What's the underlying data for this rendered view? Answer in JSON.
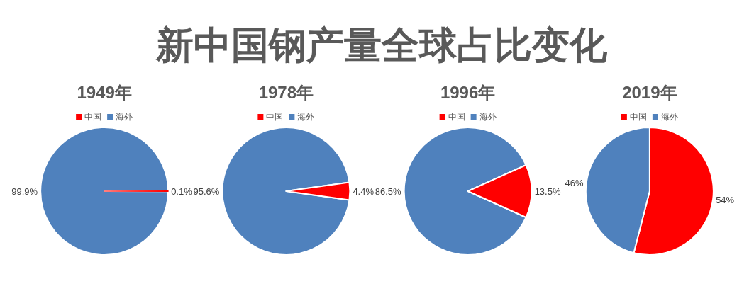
{
  "chart_data": [
    {
      "type": "other",
      "title": "新中国钢产量全球占比变化"
    },
    {
      "type": "pie",
      "title": "1949年",
      "categories": [
        "中国",
        "海外"
      ],
      "values": [
        0.1,
        99.9
      ],
      "colors": [
        "#ff0000",
        "#4f81bd"
      ],
      "value_labels": [
        "0.1%",
        "99.9%"
      ],
      "legend": "top"
    },
    {
      "type": "pie",
      "title": "1978年",
      "categories": [
        "中国",
        "海外"
      ],
      "values": [
        4.4,
        95.6
      ],
      "colors": [
        "#ff0000",
        "#4f81bd"
      ],
      "value_labels": [
        "4.4%",
        "95.6%"
      ],
      "legend": "top"
    },
    {
      "type": "pie",
      "title": "1996年",
      "categories": [
        "中国",
        "海外"
      ],
      "values": [
        13.5,
        86.5
      ],
      "colors": [
        "#ff0000",
        "#4f81bd"
      ],
      "value_labels": [
        "13.5%",
        "86.5%"
      ],
      "legend": "top"
    },
    {
      "type": "pie",
      "title": "2019年",
      "categories": [
        "中国",
        "海外"
      ],
      "values": [
        54,
        46
      ],
      "colors": [
        "#ff0000",
        "#4f81bd"
      ],
      "value_labels": [
        "54%",
        "46%"
      ],
      "legend": "top"
    }
  ]
}
